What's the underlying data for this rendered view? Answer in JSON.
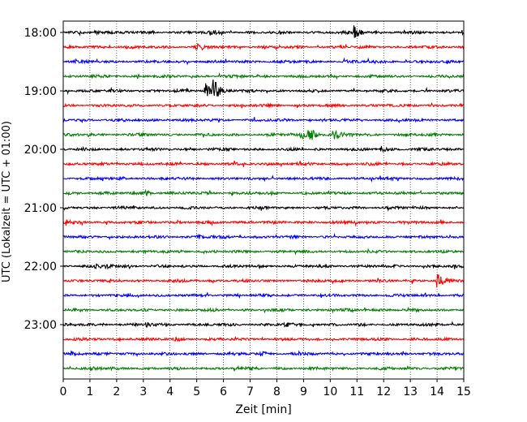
{
  "chart_data": {
    "type": "line",
    "xlabel": "Zeit  [min]",
    "ylabel": "UTC (Lokalzeit = UTC + 01:00)",
    "xlim": [
      0,
      15
    ],
    "x_ticks": [
      0,
      1,
      2,
      3,
      4,
      5,
      6,
      7,
      8,
      9,
      10,
      11,
      12,
      13,
      14,
      15
    ],
    "y_ticks": [
      {
        "label": "18:00",
        "trace": 0
      },
      {
        "label": "19:00",
        "trace": 4
      },
      {
        "label": "20:00",
        "trace": 8
      },
      {
        "label": "21:00",
        "trace": 12
      },
      {
        "label": "22:00",
        "trace": 16
      },
      {
        "label": "23:00",
        "trace": 20
      }
    ],
    "vertical_grid": true,
    "trace_interval_minutes": 15,
    "trace_colors": [
      "#000000",
      "#ff0000",
      "#0000ff",
      "#008000"
    ],
    "series": [
      {
        "start": "18:00",
        "color": "#000000",
        "events": [
          {
            "t": 10.9,
            "amp": 10
          },
          {
            "t": 5.5,
            "amp": 3
          },
          {
            "t": 1.2,
            "amp": 2.5
          }
        ]
      },
      {
        "start": "18:15",
        "color": "#ff0000",
        "events": [
          {
            "t": 5.0,
            "amp": 3
          }
        ]
      },
      {
        "start": "18:30",
        "color": "#0000ff",
        "events": []
      },
      {
        "start": "18:45",
        "color": "#008000",
        "events": []
      },
      {
        "start": "19:00",
        "color": "#000000",
        "events": [
          {
            "t": 5.3,
            "amp": 12
          },
          {
            "t": 5.6,
            "amp": 16
          }
        ]
      },
      {
        "start": "19:15",
        "color": "#ff0000",
        "events": []
      },
      {
        "start": "19:30",
        "color": "#0000ff",
        "events": []
      },
      {
        "start": "19:45",
        "color": "#008000",
        "events": [
          {
            "t": 8.9,
            "amp": 6
          },
          {
            "t": 9.2,
            "amp": 12
          },
          {
            "t": 10.1,
            "amp": 7
          }
        ]
      },
      {
        "start": "20:00",
        "color": "#000000",
        "events": [
          {
            "t": 11.9,
            "amp": 3
          }
        ]
      },
      {
        "start": "20:15",
        "color": "#ff0000",
        "events": []
      },
      {
        "start": "20:30",
        "color": "#0000ff",
        "events": []
      },
      {
        "start": "20:45",
        "color": "#008000",
        "events": [
          {
            "t": 3.1,
            "amp": 3
          },
          {
            "t": 0.2,
            "amp": 2.5
          }
        ]
      },
      {
        "start": "21:00",
        "color": "#000000",
        "events": []
      },
      {
        "start": "21:15",
        "color": "#ff0000",
        "events": [
          {
            "t": 0.1,
            "amp": 2.5
          }
        ]
      },
      {
        "start": "21:30",
        "color": "#0000ff",
        "events": [
          {
            "t": 5.0,
            "amp": 3
          }
        ]
      },
      {
        "start": "21:45",
        "color": "#008000",
        "events": []
      },
      {
        "start": "22:00",
        "color": "#000000",
        "events": [
          {
            "t": 1.2,
            "amp": 3
          },
          {
            "t": 1.6,
            "amp": 2.5
          }
        ]
      },
      {
        "start": "22:15",
        "color": "#ff0000",
        "events": [
          {
            "t": 14.0,
            "amp": 12
          }
        ]
      },
      {
        "start": "22:30",
        "color": "#0000ff",
        "events": []
      },
      {
        "start": "22:45",
        "color": "#008000",
        "events": []
      },
      {
        "start": "23:00",
        "color": "#000000",
        "events": [
          {
            "t": 3.1,
            "amp": 3
          },
          {
            "t": 8.3,
            "amp": 2.5
          }
        ]
      },
      {
        "start": "23:15",
        "color": "#ff0000",
        "events": [
          {
            "t": 4.2,
            "amp": 2.5
          }
        ]
      },
      {
        "start": "23:30",
        "color": "#0000ff",
        "events": [
          {
            "t": 7.4,
            "amp": 3
          },
          {
            "t": 0.3,
            "amp": 2.5
          }
        ]
      },
      {
        "start": "23:45",
        "color": "#008000",
        "events": [
          {
            "t": 1.0,
            "amp": 2.5
          }
        ]
      }
    ]
  }
}
